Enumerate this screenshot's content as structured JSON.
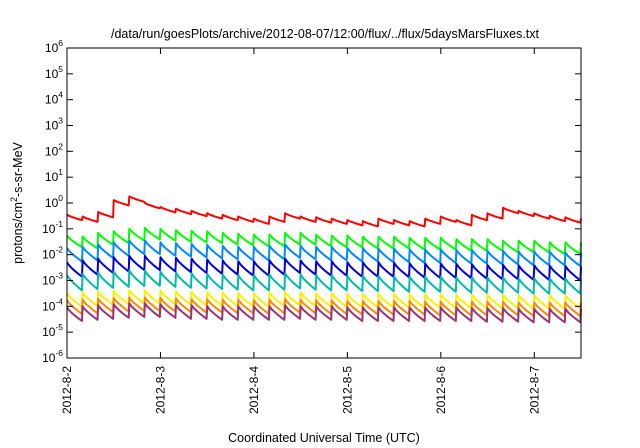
{
  "chart_data": {
    "type": "line",
    "title": "/data/run/goesPlots/archive/2012-08-07/12:00/flux/../flux/5daysMarsFluxes.txt",
    "xlabel": "Coordinated Universal Time (UTC)",
    "ylabel": {
      "prefix": "protons/cm",
      "superscript": "2",
      "suffix": "-s-sr-MeV"
    },
    "y_scale": "log",
    "ylim": [
      1e-06,
      1000000.0
    ],
    "y_ticks": [
      {
        "base": "10",
        "exp": "6",
        "value": 1000000.0
      },
      {
        "base": "10",
        "exp": "5",
        "value": 100000.0
      },
      {
        "base": "10",
        "exp": "4",
        "value": 10000.0
      },
      {
        "base": "10",
        "exp": "3",
        "value": 1000.0
      },
      {
        "base": "10",
        "exp": "2",
        "value": 100.0
      },
      {
        "base": "10",
        "exp": "1",
        "value": 10.0
      },
      {
        "base": "10",
        "exp": "0",
        "value": 1.0
      },
      {
        "base": "10",
        "exp": "-1",
        "value": 0.1
      },
      {
        "base": "10",
        "exp": "-2",
        "value": 0.01
      },
      {
        "base": "10",
        "exp": "-3",
        "value": 0.001
      },
      {
        "base": "10",
        "exp": "-4",
        "value": 0.0001
      },
      {
        "base": "10",
        "exp": "-5",
        "value": 1e-05
      },
      {
        "base": "10",
        "exp": "-6",
        "value": 1e-06
      }
    ],
    "xlim": [
      "2012-08-02 00:00",
      "2012-08-07 12:00"
    ],
    "x_ticks": [
      "2012-8-2",
      "2012-8-3",
      "2012-8-4",
      "2012-8-5",
      "2012-8-6",
      "2012-8-7"
    ],
    "grid": false,
    "sawtooth_period_hours": 4,
    "series": [
      {
        "color": "#ff0000",
        "times": [
          "2012-08-02 00:00",
          "2012-08-02 04:00",
          "2012-08-02 08:00",
          "2012-08-02 12:00",
          "2012-08-02 16:00",
          "2012-08-02 20:00",
          "2012-08-03 00:00",
          "2012-08-03 04:00",
          "2012-08-03 08:00",
          "2012-08-03 12:00",
          "2012-08-03 16:00",
          "2012-08-03 20:00",
          "2012-08-04 00:00",
          "2012-08-04 04:00",
          "2012-08-04 08:00",
          "2012-08-04 12:00",
          "2012-08-04 16:00",
          "2012-08-04 20:00",
          "2012-08-05 00:00",
          "2012-08-05 04:00",
          "2012-08-05 08:00",
          "2012-08-05 12:00",
          "2012-08-05 16:00",
          "2012-08-05 20:00",
          "2012-08-06 00:00",
          "2012-08-06 04:00",
          "2012-08-06 08:00",
          "2012-08-06 12:00",
          "2012-08-06 16:00",
          "2012-08-06 20:00",
          "2012-08-07 00:00",
          "2012-08-07 04:00",
          "2012-08-07 08:00",
          "2012-08-07 12:00"
        ],
        "peaks": [
          0.35,
          0.3,
          0.45,
          1.3,
          1.8,
          1.0,
          0.7,
          0.6,
          0.5,
          0.4,
          0.35,
          0.3,
          0.25,
          0.3,
          0.4,
          0.3,
          0.28,
          0.25,
          0.22,
          0.2,
          0.25,
          0.22,
          0.2,
          0.25,
          0.3,
          0.22,
          0.35,
          0.4,
          0.65,
          0.5,
          0.4,
          0.32,
          0.28,
          0.25
        ],
        "trough_ratio": 0.62
      },
      {
        "color": "#00ff00",
        "times": [
          "2012-08-02 00:00",
          "2012-08-02 04:00",
          "2012-08-02 08:00",
          "2012-08-02 12:00",
          "2012-08-02 16:00",
          "2012-08-02 20:00",
          "2012-08-03 00:00",
          "2012-08-03 04:00",
          "2012-08-03 08:00",
          "2012-08-03 12:00",
          "2012-08-03 16:00",
          "2012-08-03 20:00",
          "2012-08-04 00:00",
          "2012-08-04 04:00",
          "2012-08-04 08:00",
          "2012-08-04 12:00",
          "2012-08-04 16:00",
          "2012-08-04 20:00",
          "2012-08-05 00:00",
          "2012-08-05 04:00",
          "2012-08-05 08:00",
          "2012-08-05 12:00",
          "2012-08-05 16:00",
          "2012-08-05 20:00",
          "2012-08-06 00:00",
          "2012-08-06 04:00",
          "2012-08-06 08:00",
          "2012-08-06 12:00",
          "2012-08-06 16:00",
          "2012-08-06 20:00",
          "2012-08-07 00:00",
          "2012-08-07 04:00",
          "2012-08-07 08:00",
          "2012-08-07 12:00"
        ],
        "peaks": [
          0.055,
          0.05,
          0.07,
          0.08,
          0.1,
          0.11,
          0.1,
          0.09,
          0.085,
          0.08,
          0.07,
          0.065,
          0.06,
          0.06,
          0.07,
          0.07,
          0.06,
          0.055,
          0.055,
          0.05,
          0.05,
          0.05,
          0.045,
          0.045,
          0.045,
          0.04,
          0.04,
          0.04,
          0.035,
          0.035,
          0.035,
          0.03,
          0.03,
          0.03
        ],
        "trough_ratio": 0.35
      },
      {
        "color": "#0088ff",
        "times": [
          "2012-08-02 00:00",
          "2012-08-02 04:00",
          "2012-08-02 08:00",
          "2012-08-02 12:00",
          "2012-08-02 16:00",
          "2012-08-02 20:00",
          "2012-08-03 00:00",
          "2012-08-03 04:00",
          "2012-08-03 08:00",
          "2012-08-03 12:00",
          "2012-08-03 16:00",
          "2012-08-03 20:00",
          "2012-08-04 00:00",
          "2012-08-04 04:00",
          "2012-08-04 08:00",
          "2012-08-04 12:00",
          "2012-08-04 16:00",
          "2012-08-04 20:00",
          "2012-08-05 00:00",
          "2012-08-05 04:00",
          "2012-08-05 08:00",
          "2012-08-05 12:00",
          "2012-08-05 16:00",
          "2012-08-05 20:00",
          "2012-08-06 00:00",
          "2012-08-06 04:00",
          "2012-08-06 08:00",
          "2012-08-06 12:00",
          "2012-08-06 16:00",
          "2012-08-06 20:00",
          "2012-08-07 00:00",
          "2012-08-07 04:00",
          "2012-08-07 08:00",
          "2012-08-07 12:00"
        ],
        "peaks": [
          0.018,
          0.02,
          0.025,
          0.03,
          0.035,
          0.035,
          0.03,
          0.028,
          0.026,
          0.024,
          0.022,
          0.02,
          0.02,
          0.022,
          0.025,
          0.022,
          0.02,
          0.02,
          0.018,
          0.018,
          0.017,
          0.017,
          0.016,
          0.016,
          0.016,
          0.015,
          0.015,
          0.014,
          0.014,
          0.013,
          0.013,
          0.013,
          0.012,
          0.012
        ],
        "trough_ratio": 0.3
      },
      {
        "color": "#0000dd",
        "times": [
          "2012-08-02 00:00",
          "2012-08-02 04:00",
          "2012-08-02 08:00",
          "2012-08-02 12:00",
          "2012-08-02 16:00",
          "2012-08-02 20:00",
          "2012-08-03 00:00",
          "2012-08-03 04:00",
          "2012-08-03 08:00",
          "2012-08-03 12:00",
          "2012-08-03 16:00",
          "2012-08-03 20:00",
          "2012-08-04 00:00",
          "2012-08-04 04:00",
          "2012-08-04 08:00",
          "2012-08-04 12:00",
          "2012-08-04 16:00",
          "2012-08-04 20:00",
          "2012-08-05 00:00",
          "2012-08-05 04:00",
          "2012-08-05 08:00",
          "2012-08-05 12:00",
          "2012-08-05 16:00",
          "2012-08-05 20:00",
          "2012-08-06 00:00",
          "2012-08-06 04:00",
          "2012-08-06 08:00",
          "2012-08-06 12:00",
          "2012-08-06 16:00",
          "2012-08-06 20:00",
          "2012-08-07 00:00",
          "2012-08-07 04:00",
          "2012-08-07 08:00",
          "2012-08-07 12:00"
        ],
        "peaks": [
          0.005,
          0.006,
          0.007,
          0.008,
          0.009,
          0.009,
          0.008,
          0.0075,
          0.007,
          0.0065,
          0.006,
          0.0055,
          0.0055,
          0.006,
          0.007,
          0.006,
          0.0055,
          0.0055,
          0.005,
          0.005,
          0.005,
          0.0048,
          0.0046,
          0.0045,
          0.0045,
          0.0044,
          0.0042,
          0.004,
          0.004,
          0.0038,
          0.0038,
          0.0037,
          0.0036,
          0.0035
        ],
        "trough_ratio": 0.28
      },
      {
        "color": "#00bbaa",
        "times": [
          "2012-08-02 00:00",
          "2012-08-02 04:00",
          "2012-08-02 08:00",
          "2012-08-02 12:00",
          "2012-08-02 16:00",
          "2012-08-02 20:00",
          "2012-08-03 00:00",
          "2012-08-03 04:00",
          "2012-08-03 08:00",
          "2012-08-03 12:00",
          "2012-08-03 16:00",
          "2012-08-03 20:00",
          "2012-08-04 00:00",
          "2012-08-04 04:00",
          "2012-08-04 08:00",
          "2012-08-04 12:00",
          "2012-08-04 16:00",
          "2012-08-04 20:00",
          "2012-08-05 00:00",
          "2012-08-05 04:00",
          "2012-08-05 08:00",
          "2012-08-05 12:00",
          "2012-08-05 16:00",
          "2012-08-05 20:00",
          "2012-08-06 00:00",
          "2012-08-06 04:00",
          "2012-08-06 08:00",
          "2012-08-06 12:00",
          "2012-08-06 16:00",
          "2012-08-06 20:00",
          "2012-08-07 00:00",
          "2012-08-07 04:00",
          "2012-08-07 08:00",
          "2012-08-07 12:00"
        ],
        "peaks": [
          0.0016,
          0.0018,
          0.002,
          0.0022,
          0.0024,
          0.0024,
          0.0022,
          0.002,
          0.0019,
          0.0018,
          0.0017,
          0.0016,
          0.0016,
          0.0017,
          0.0019,
          0.0017,
          0.0016,
          0.0016,
          0.0015,
          0.0015,
          0.0015,
          0.0014,
          0.0014,
          0.0014,
          0.0014,
          0.0013,
          0.0013,
          0.0013,
          0.0013,
          0.0012,
          0.0012,
          0.0012,
          0.0012,
          0.0012
        ],
        "trough_ratio": 0.26
      },
      {
        "color": "#ffee00",
        "times": [
          "2012-08-02 00:00",
          "2012-08-02 04:00",
          "2012-08-02 08:00",
          "2012-08-02 12:00",
          "2012-08-02 16:00",
          "2012-08-02 20:00",
          "2012-08-03 00:00",
          "2012-08-03 04:00",
          "2012-08-03 08:00",
          "2012-08-03 12:00",
          "2012-08-03 16:00",
          "2012-08-03 20:00",
          "2012-08-04 00:00",
          "2012-08-04 04:00",
          "2012-08-04 08:00",
          "2012-08-04 12:00",
          "2012-08-04 16:00",
          "2012-08-04 20:00",
          "2012-08-05 00:00",
          "2012-08-05 04:00",
          "2012-08-05 08:00",
          "2012-08-05 12:00",
          "2012-08-05 16:00",
          "2012-08-05 20:00",
          "2012-08-06 00:00",
          "2012-08-06 04:00",
          "2012-08-06 08:00",
          "2012-08-06 12:00",
          "2012-08-06 16:00",
          "2012-08-06 20:00",
          "2012-08-07 00:00",
          "2012-08-07 04:00",
          "2012-08-07 08:00",
          "2012-08-07 12:00"
        ],
        "peaks": [
          0.00032,
          0.00034,
          0.00038,
          0.0004,
          0.00042,
          0.00042,
          0.0004,
          0.00038,
          0.00036,
          0.00035,
          0.00034,
          0.00033,
          0.00032,
          0.00034,
          0.00036,
          0.00034,
          0.00032,
          0.00032,
          0.0003,
          0.0003,
          0.0003,
          0.0003,
          0.00029,
          0.00029,
          0.00029,
          0.00028,
          0.00028,
          0.00028,
          0.00028,
          0.00027,
          0.00027,
          0.00027,
          0.00027,
          0.00027
        ],
        "trough_ratio": 0.3
      },
      {
        "color": "#ff8800",
        "times": [
          "2012-08-02 00:00",
          "2012-08-02 04:00",
          "2012-08-02 08:00",
          "2012-08-02 12:00",
          "2012-08-02 16:00",
          "2012-08-02 20:00",
          "2012-08-03 00:00",
          "2012-08-03 04:00",
          "2012-08-03 08:00",
          "2012-08-03 12:00",
          "2012-08-03 16:00",
          "2012-08-03 20:00",
          "2012-08-04 00:00",
          "2012-08-04 04:00",
          "2012-08-04 08:00",
          "2012-08-04 12:00",
          "2012-08-04 16:00",
          "2012-08-04 20:00",
          "2012-08-05 00:00",
          "2012-08-05 04:00",
          "2012-08-05 08:00",
          "2012-08-05 12:00",
          "2012-08-05 16:00",
          "2012-08-05 20:00",
          "2012-08-06 00:00",
          "2012-08-06 04:00",
          "2012-08-06 08:00",
          "2012-08-06 12:00",
          "2012-08-06 16:00",
          "2012-08-06 20:00",
          "2012-08-07 00:00",
          "2012-08-07 04:00",
          "2012-08-07 08:00",
          "2012-08-07 12:00"
        ],
        "peaks": [
          0.00017,
          0.00018,
          0.0002,
          0.00021,
          0.00022,
          0.00022,
          0.00021,
          0.0002,
          0.00019,
          0.00019,
          0.00018,
          0.00018,
          0.00017,
          0.00018,
          0.00019,
          0.00018,
          0.00017,
          0.00017,
          0.00016,
          0.00016,
          0.00016,
          0.00016,
          0.00016,
          0.00015,
          0.00015,
          0.00015,
          0.00015,
          0.00015,
          0.00015,
          0.00014,
          0.00014,
          0.00014,
          0.00014,
          0.00014
        ],
        "trough_ratio": 0.3
      },
      {
        "color": "#993377",
        "times": [
          "2012-08-02 00:00",
          "2012-08-02 04:00",
          "2012-08-02 08:00",
          "2012-08-02 12:00",
          "2012-08-02 16:00",
          "2012-08-02 20:00",
          "2012-08-03 00:00",
          "2012-08-03 04:00",
          "2012-08-03 08:00",
          "2012-08-03 12:00",
          "2012-08-03 16:00",
          "2012-08-03 20:00",
          "2012-08-04 00:00",
          "2012-08-04 04:00",
          "2012-08-04 08:00",
          "2012-08-04 12:00",
          "2012-08-04 16:00",
          "2012-08-04 20:00",
          "2012-08-05 00:00",
          "2012-08-05 04:00",
          "2012-08-05 08:00",
          "2012-08-05 12:00",
          "2012-08-05 16:00",
          "2012-08-05 20:00",
          "2012-08-06 00:00",
          "2012-08-06 04:00",
          "2012-08-06 08:00",
          "2012-08-06 12:00",
          "2012-08-06 16:00",
          "2012-08-06 20:00",
          "2012-08-07 00:00",
          "2012-08-07 04:00",
          "2012-08-07 08:00",
          "2012-08-07 12:00"
        ],
        "peaks": [
          9e-05,
          0.0001,
          0.00011,
          0.00012,
          0.00013,
          0.00013,
          0.00012,
          0.00011,
          0.00011,
          0.0001,
          0.0001,
          0.0001,
          0.0001,
          0.0001,
          0.00011,
          0.0001,
          0.0001,
          0.0001,
          9e-05,
          9e-05,
          9e-05,
          9e-05,
          9e-05,
          9e-05,
          9e-05,
          9e-05,
          8.5e-05,
          8.5e-05,
          8.5e-05,
          8e-05,
          8e-05,
          8e-05,
          8e-05,
          8e-05
        ],
        "trough_ratio": 0.3
      }
    ]
  }
}
